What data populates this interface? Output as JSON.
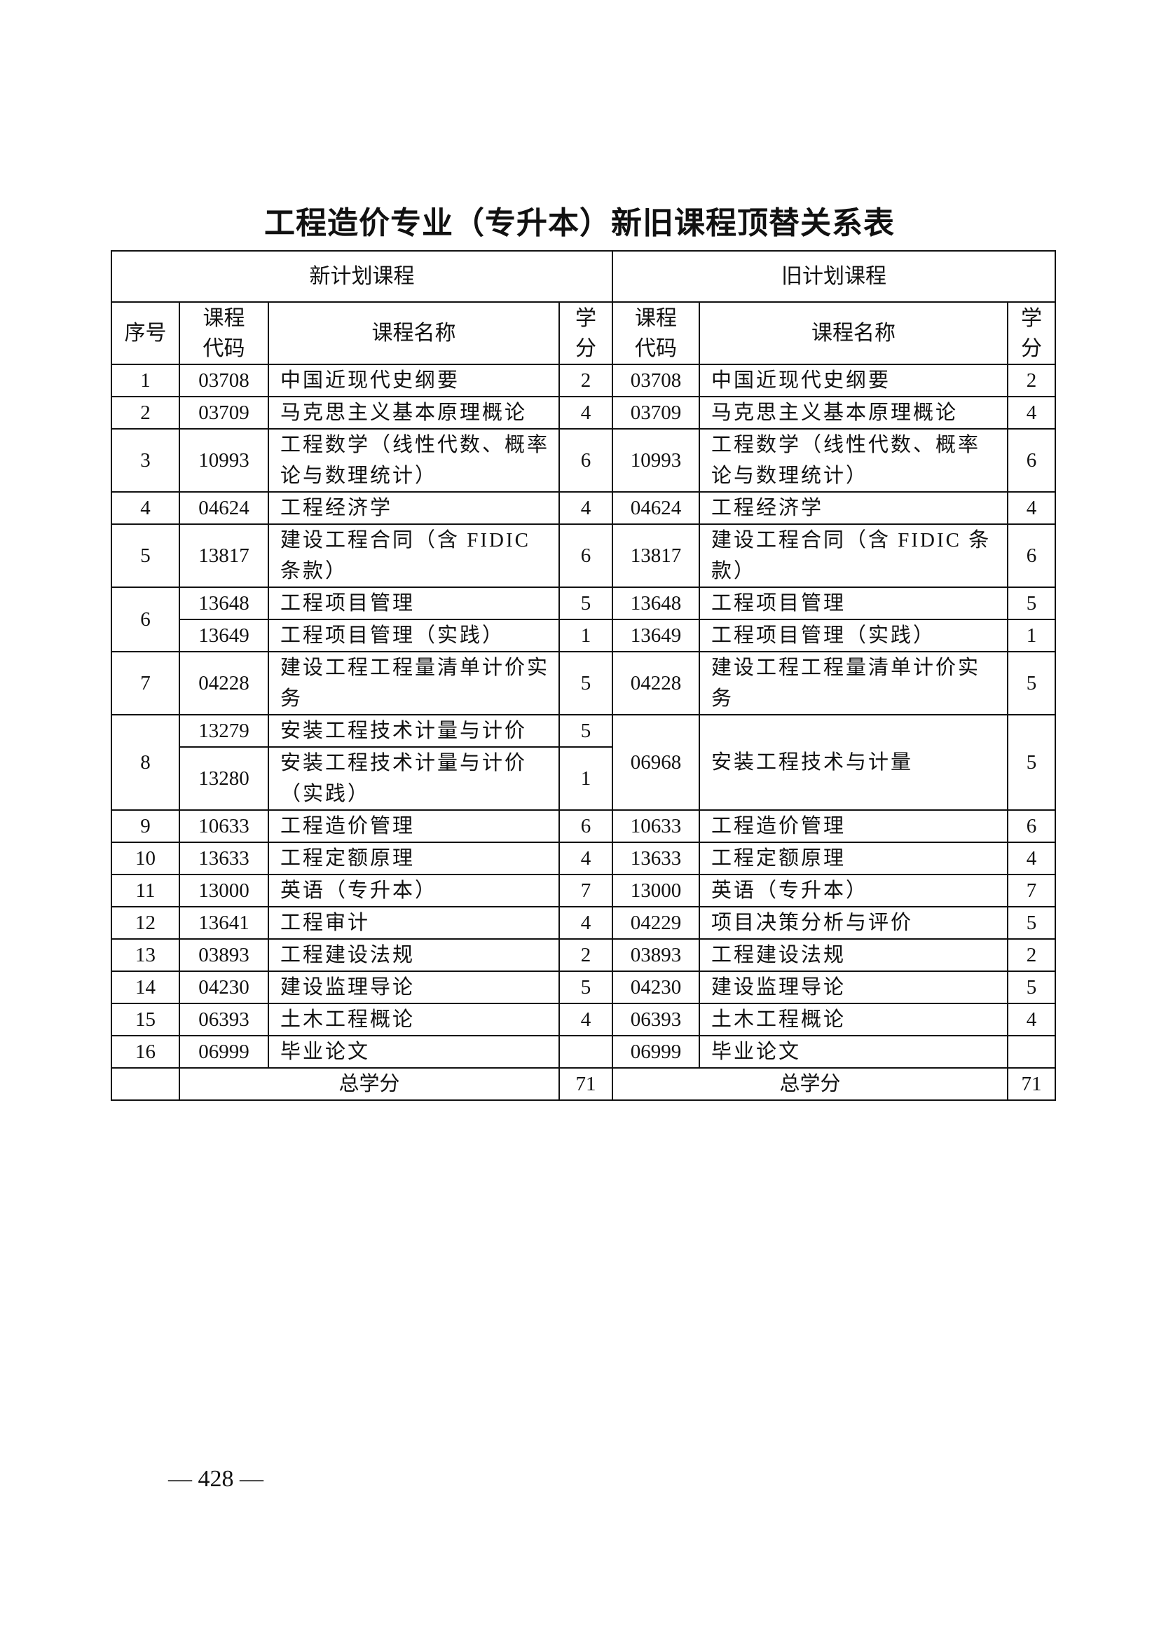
{
  "title": "工程造价专业（专升本）新旧课程顶替关系表",
  "headers": {
    "new_plan": "新计划课程",
    "old_plan": "旧计划课程",
    "seq": "序号",
    "code": "课程代码",
    "name": "课程名称",
    "credit": "学分"
  },
  "rows": [
    {
      "seq": "1",
      "new": [
        {
          "code": "03708",
          "name": "中国近现代史纲要",
          "credit": "2"
        }
      ],
      "old": [
        {
          "code": "03708",
          "name": "中国近现代史纲要",
          "credit": "2"
        }
      ]
    },
    {
      "seq": "2",
      "new": [
        {
          "code": "03709",
          "name": "马克思主义基本原理概论",
          "credit": "4"
        }
      ],
      "old": [
        {
          "code": "03709",
          "name": "马克思主义基本原理概论",
          "credit": "4"
        }
      ]
    },
    {
      "seq": "3",
      "new": [
        {
          "code": "10993",
          "name": "工程数学（线性代数、概率论与数理统计）",
          "credit": "6"
        }
      ],
      "old": [
        {
          "code": "10993",
          "name": "工程数学（线性代数、概率论与数理统计）",
          "credit": "6"
        }
      ]
    },
    {
      "seq": "4",
      "new": [
        {
          "code": "04624",
          "name": "工程经济学",
          "credit": "4"
        }
      ],
      "old": [
        {
          "code": "04624",
          "name": "工程经济学",
          "credit": "4"
        }
      ]
    },
    {
      "seq": "5",
      "new": [
        {
          "code": "13817",
          "name": "建设工程合同（含 FIDIC 条款）",
          "credit": "6"
        }
      ],
      "old": [
        {
          "code": "13817",
          "name": "建设工程合同（含 FIDIC 条款）",
          "credit": "6"
        }
      ]
    },
    {
      "seq": "6",
      "new": [
        {
          "code": "13648",
          "name": "工程项目管理",
          "credit": "5"
        },
        {
          "code": "13649",
          "name": "工程项目管理（实践）",
          "credit": "1"
        }
      ],
      "old": [
        {
          "code": "13648",
          "name": "工程项目管理",
          "credit": "5"
        },
        {
          "code": "13649",
          "name": "工程项目管理（实践）",
          "credit": "1"
        }
      ]
    },
    {
      "seq": "7",
      "new": [
        {
          "code": "04228",
          "name": "建设工程工程量清单计价实务",
          "credit": "5"
        }
      ],
      "old": [
        {
          "code": "04228",
          "name": "建设工程工程量清单计价实务",
          "credit": "5"
        }
      ]
    },
    {
      "seq": "8",
      "new": [
        {
          "code": "13279",
          "name": "安装工程技术计量与计价",
          "credit": "5"
        },
        {
          "code": "13280",
          "name": "安装工程技术计量与计价（实践）",
          "credit": "1"
        }
      ],
      "old": [
        {
          "code": "06968",
          "name": "安装工程技术与计量",
          "credit": "5"
        }
      ]
    },
    {
      "seq": "9",
      "new": [
        {
          "code": "10633",
          "name": "工程造价管理",
          "credit": "6"
        }
      ],
      "old": [
        {
          "code": "10633",
          "name": "工程造价管理",
          "credit": "6"
        }
      ]
    },
    {
      "seq": "10",
      "new": [
        {
          "code": "13633",
          "name": "工程定额原理",
          "credit": "4"
        }
      ],
      "old": [
        {
          "code": "13633",
          "name": "工程定额原理",
          "credit": "4"
        }
      ]
    },
    {
      "seq": "11",
      "new": [
        {
          "code": "13000",
          "name": "英语（专升本）",
          "credit": "7"
        }
      ],
      "old": [
        {
          "code": "13000",
          "name": "英语（专升本）",
          "credit": "7"
        }
      ]
    },
    {
      "seq": "12",
      "new": [
        {
          "code": "13641",
          "name": "工程审计",
          "credit": "4"
        }
      ],
      "old": [
        {
          "code": "04229",
          "name": "项目决策分析与评价",
          "credit": "5"
        }
      ]
    },
    {
      "seq": "13",
      "new": [
        {
          "code": "03893",
          "name": "工程建设法规",
          "credit": "2"
        }
      ],
      "old": [
        {
          "code": "03893",
          "name": "工程建设法规",
          "credit": "2"
        }
      ]
    },
    {
      "seq": "14",
      "new": [
        {
          "code": "04230",
          "name": "建设监理导论",
          "credit": "5"
        }
      ],
      "old": [
        {
          "code": "04230",
          "name": "建设监理导论",
          "credit": "5"
        }
      ]
    },
    {
      "seq": "15",
      "new": [
        {
          "code": "06393",
          "name": "土木工程概论",
          "credit": "4"
        }
      ],
      "old": [
        {
          "code": "06393",
          "name": "土木工程概论",
          "credit": "4"
        }
      ]
    },
    {
      "seq": "16",
      "new": [
        {
          "code": "06999",
          "name": "毕业论文",
          "credit": ""
        }
      ],
      "old": [
        {
          "code": "06999",
          "name": "毕业论文",
          "credit": ""
        }
      ]
    }
  ],
  "total": {
    "label": "总学分",
    "new_credit": "71",
    "old_credit": "71"
  },
  "page_number": "— 428 —"
}
